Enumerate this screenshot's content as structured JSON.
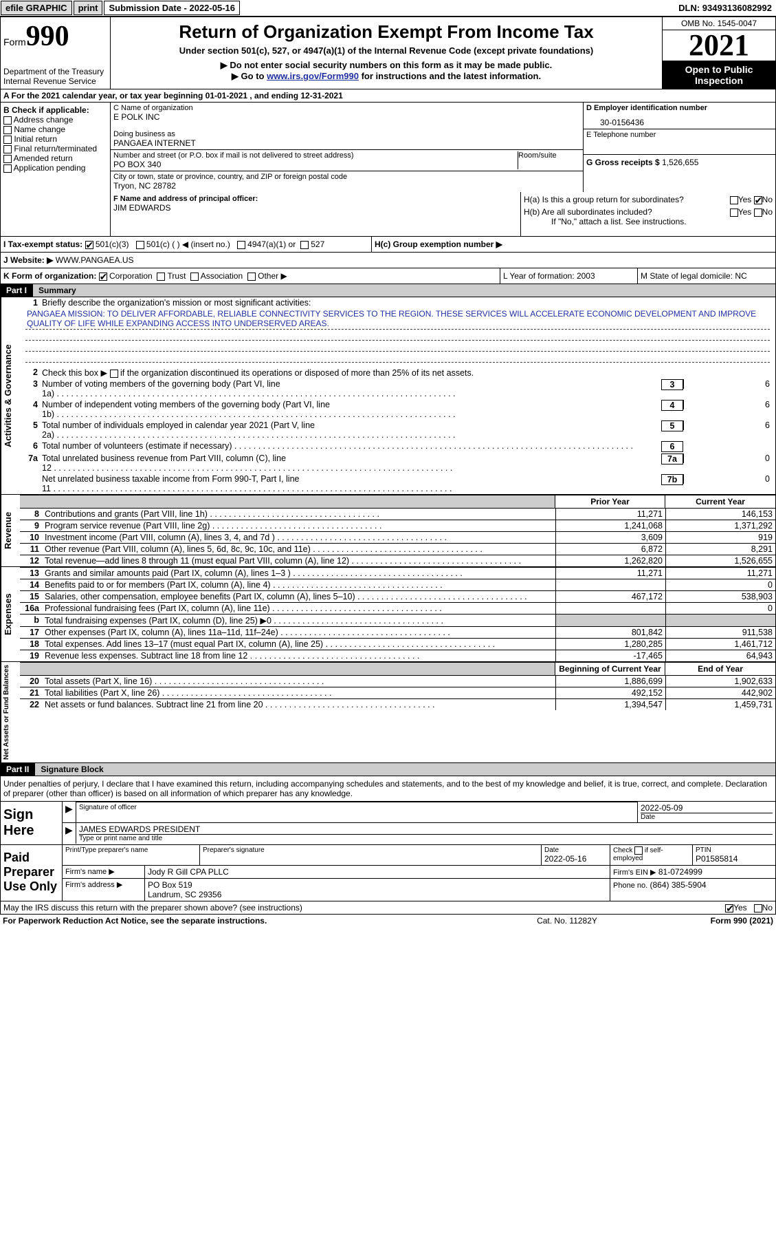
{
  "topbar": {
    "efile": "efile GRAPHIC",
    "print": "print",
    "submission": "Submission Date - 2022-05-16",
    "dln": "DLN: 93493136082992"
  },
  "header": {
    "form_label": "Form",
    "form_num": "990",
    "dept": "Department of the Treasury",
    "irs": "Internal Revenue Service",
    "title": "Return of Organization Exempt From Income Tax",
    "subtitle": "Under section 501(c), 527, or 4947(a)(1) of the Internal Revenue Code (except private foundations)",
    "note1": "▶ Do not enter social security numbers on this form as it may be made public.",
    "note2_pre": "▶ Go to ",
    "note2_link": "www.irs.gov/Form990",
    "note2_post": " for instructions and the latest information.",
    "omb": "OMB No. 1545-0047",
    "year": "2021",
    "open": "Open to Public Inspection"
  },
  "row_a": "A For the 2021 calendar year, or tax year beginning 01-01-2021   , and ending 12-31-2021",
  "col_b": {
    "label": "B Check if applicable:",
    "items": [
      "Address change",
      "Name change",
      "Initial return",
      "Final return/terminated",
      "Amended return",
      "Application pending"
    ]
  },
  "org": {
    "c_label": "C Name of organization",
    "name": "E POLK INC",
    "dba_label": "Doing business as",
    "dba": "PANGAEA INTERNET",
    "addr_label": "Number and street (or P.O. box if mail is not delivered to street address)",
    "room_label": "Room/suite",
    "addr": "PO BOX 340",
    "city_label": "City or town, state or province, country, and ZIP or foreign postal code",
    "city": "Tryon, NC  28782"
  },
  "right": {
    "d_label": "D Employer identification number",
    "ein": "30-0156436",
    "e_label": "E Telephone number",
    "g_label": "G Gross receipts $",
    "g_val": "1,526,655"
  },
  "f_block": {
    "label": "F  Name and address of principal officer:",
    "name": "JIM EDWARDS"
  },
  "h_block": {
    "ha": "H(a)  Is this a group return for subordinates?",
    "hb": "H(b)  Are all subordinates included?",
    "hb_note": "If \"No,\" attach a list. See instructions.",
    "hc": "H(c)  Group exemption number ▶",
    "yes": "Yes",
    "no": "No"
  },
  "i_row": {
    "i": "I    Tax-exempt status:",
    "o1": "501(c)(3)",
    "o2": "501(c) (  ) ◀ (insert no.)",
    "o3": "4947(a)(1) or",
    "o4": "527"
  },
  "j_row": {
    "label": "J   Website: ▶",
    "val": "  WWW.PANGAEA.US"
  },
  "k_row": {
    "label": "K Form of organization:",
    "o1": "Corporation",
    "o2": "Trust",
    "o3": "Association",
    "o4": "Other ▶",
    "l": "L Year of formation: 2003",
    "m": "M State of legal domicile: NC"
  },
  "part1": {
    "label": "Part I",
    "title": "Summary"
  },
  "summary": {
    "l1_label": "Briefly describe the organization's mission or most significant activities:",
    "l1_text": "PANGAEA MISSION: TO DELIVER AFFORDABLE, RELIABLE CONNECTIVITY SERVICES TO THE REGION. THESE SERVICES WILL ACCELERATE ECONOMIC DEVELOPMENT AND IMPROVE QUALITY OF LIFE WHILE EXPANDING ACCESS INTO UNDERSERVED AREAS.",
    "l2": "Check this box ▶      if the organization discontinued its operations or disposed of more than 25% of its net assets.",
    "l3": "Number of voting members of the governing body (Part VI, line 1a)",
    "l3v": "6",
    "l4": "Number of independent voting members of the governing body (Part VI, line 1b)",
    "l4v": "6",
    "l5": "Total number of individuals employed in calendar year 2021 (Part V, line 2a)",
    "l5v": "6",
    "l6": "Total number of volunteers (estimate if necessary)",
    "l6v": "",
    "l7a": "Total unrelated business revenue from Part VIII, column (C), line 12",
    "l7av": "0",
    "l7b": "Net unrelated business taxable income from Form 990-T, Part I, line 11",
    "l7bv": "0"
  },
  "cols": {
    "prior": "Prior Year",
    "current": "Current Year",
    "begin": "Beginning of Current Year",
    "end": "End of Year"
  },
  "revenue": [
    {
      "n": "8",
      "d": "Contributions and grants (Part VIII, line 1h)",
      "p": "11,271",
      "c": "146,153"
    },
    {
      "n": "9",
      "d": "Program service revenue (Part VIII, line 2g)",
      "p": "1,241,068",
      "c": "1,371,292"
    },
    {
      "n": "10",
      "d": "Investment income (Part VIII, column (A), lines 3, 4, and 7d )",
      "p": "3,609",
      "c": "919"
    },
    {
      "n": "11",
      "d": "Other revenue (Part VIII, column (A), lines 5, 6d, 8c, 9c, 10c, and 11e)",
      "p": "6,872",
      "c": "8,291"
    },
    {
      "n": "12",
      "d": "Total revenue—add lines 8 through 11 (must equal Part VIII, column (A), line 12)",
      "p": "1,262,820",
      "c": "1,526,655"
    }
  ],
  "expenses": [
    {
      "n": "13",
      "d": "Grants and similar amounts paid (Part IX, column (A), lines 1–3 )",
      "p": "11,271",
      "c": "11,271"
    },
    {
      "n": "14",
      "d": "Benefits paid to or for members (Part IX, column (A), line 4)",
      "p": "",
      "c": "0"
    },
    {
      "n": "15",
      "d": "Salaries, other compensation, employee benefits (Part IX, column (A), lines 5–10)",
      "p": "467,172",
      "c": "538,903"
    },
    {
      "n": "16a",
      "d": "Professional fundraising fees (Part IX, column (A), line 11e)",
      "p": "",
      "c": "0"
    },
    {
      "n": "b",
      "d": "Total fundraising expenses (Part IX, column (D), line 25) ▶0",
      "shade": true
    },
    {
      "n": "17",
      "d": "Other expenses (Part IX, column (A), lines 11a–11d, 11f–24e)",
      "p": "801,842",
      "c": "911,538"
    },
    {
      "n": "18",
      "d": "Total expenses. Add lines 13–17 (must equal Part IX, column (A), line 25)",
      "p": "1,280,285",
      "c": "1,461,712"
    },
    {
      "n": "19",
      "d": "Revenue less expenses. Subtract line 18 from line 12",
      "p": "-17,465",
      "c": "64,943"
    }
  ],
  "net": [
    {
      "n": "20",
      "d": "Total assets (Part X, line 16)",
      "p": "1,886,699",
      "c": "1,902,633"
    },
    {
      "n": "21",
      "d": "Total liabilities (Part X, line 26)",
      "p": "492,152",
      "c": "442,902"
    },
    {
      "n": "22",
      "d": "Net assets or fund balances. Subtract line 21 from line 20",
      "p": "1,394,547",
      "c": "1,459,731"
    }
  ],
  "part2": {
    "label": "Part II",
    "title": "Signature Block",
    "perjury": "Under penalties of perjury, I declare that I have examined this return, including accompanying schedules and statements, and to the best of my knowledge and belief, it is true, correct, and complete. Declaration of preparer (other than officer) is based on all information of which preparer has any knowledge."
  },
  "sign": {
    "here": "Sign Here",
    "sig_officer": "Signature of officer",
    "date": "Date",
    "sig_date": "2022-05-09",
    "name": "JAMES EDWARDS  PRESIDENT",
    "name_label": "Type or print name and title"
  },
  "paid": {
    "label": "Paid Preparer Use Only",
    "pt_name": "Print/Type preparer's name",
    "pt_sig": "Preparer's signature",
    "pt_date_label": "Date",
    "pt_date": "2022-05-16",
    "check": "Check         if self-employed",
    "ptin_label": "PTIN",
    "ptin": "P01585814",
    "firm_name_label": "Firm's name     ▶",
    "firm_name": "Jody R Gill CPA PLLC",
    "firm_ein_label": "Firm's EIN ▶",
    "firm_ein": "81-0724999",
    "firm_addr_label": "Firm's address ▶",
    "firm_addr1": "PO Box 519",
    "firm_addr2": "Landrum, SC  29356",
    "phone_label": "Phone no.",
    "phone": "(864) 385-5904"
  },
  "discuss": {
    "q": "May the IRS discuss this return with the preparer shown above? (see instructions)",
    "yes": "Yes",
    "no": "No"
  },
  "footer": {
    "l": "For Paperwork Reduction Act Notice, see the separate instructions.",
    "m": "Cat. No. 11282Y",
    "r": "Form 990 (2021)"
  }
}
